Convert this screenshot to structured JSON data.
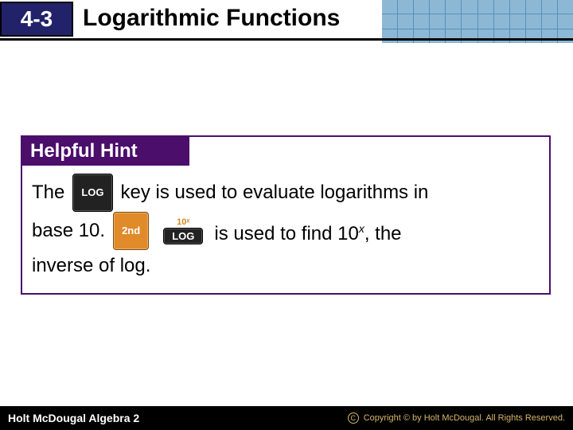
{
  "header": {
    "section_number": "4-3",
    "title": "Logarithmic Functions",
    "badge_bg": "#22226a",
    "grid_cell": "#8cb8d6",
    "grid_line": "#5a8fb5"
  },
  "hint": {
    "label": "Helpful Hint",
    "label_bg": "#4b0e6b",
    "line1_a": "The",
    "key_log": "LOG",
    "line1_b": "key is used to evaluate logarithms in",
    "line2_a": "base 10.",
    "key_2nd": "2nd",
    "key_10x_sup": "10ˣ",
    "line2_b": "is used to find 10",
    "line2_exp": "x",
    "line2_c": ", the",
    "line3": "inverse of log."
  },
  "footer": {
    "left": "Holt McDougal Algebra 2",
    "right": "Copyright © by Holt McDougal. All Rights Reserved.",
    "accent": "#d8b56a"
  }
}
